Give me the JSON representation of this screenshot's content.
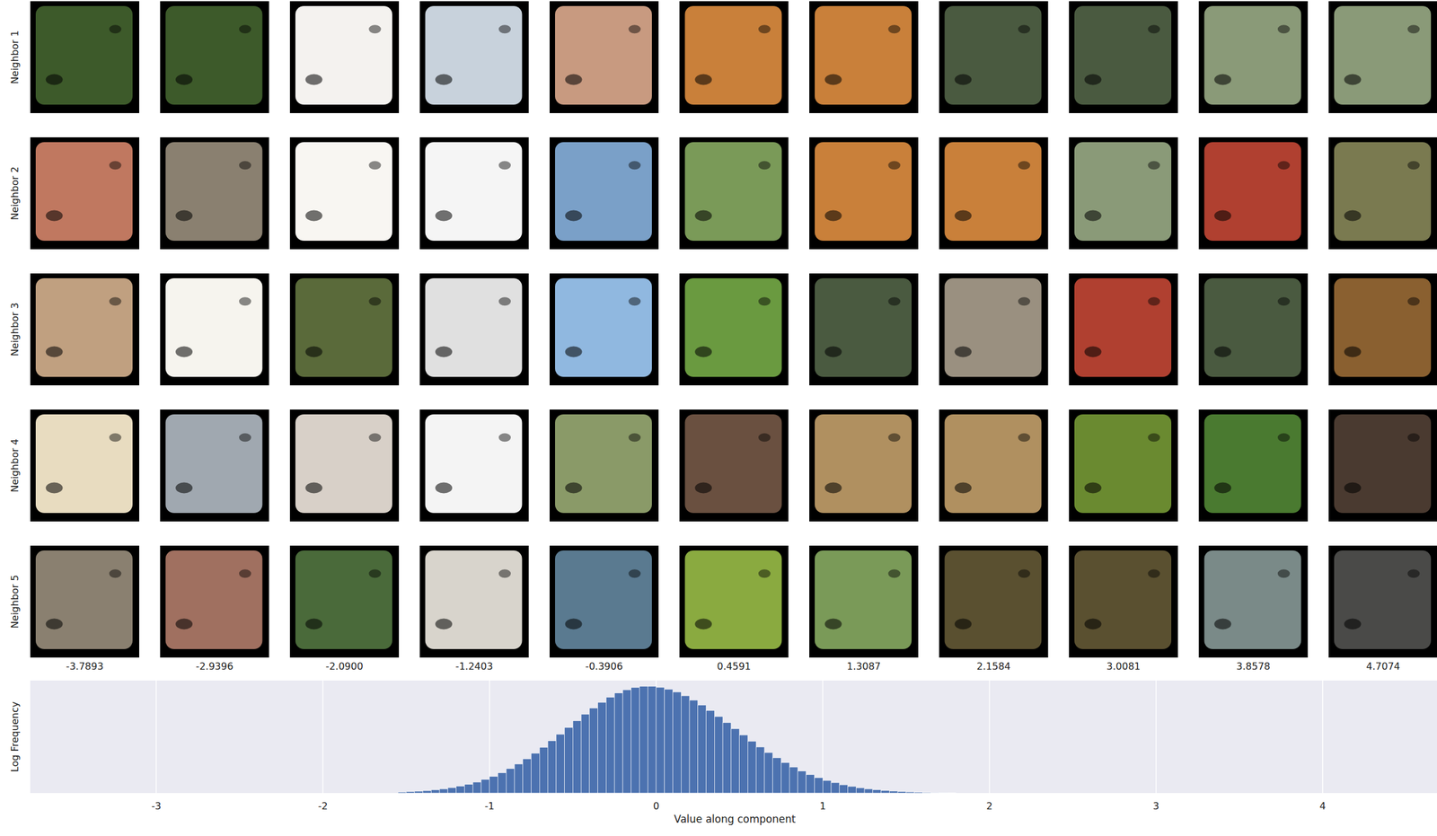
{
  "image_grid": {
    "row_labels": [
      "Neighbor 1",
      "Neighbor 2",
      "Neighbor 3",
      "Neighbor 4",
      "Neighbor 5"
    ],
    "column_labels": [
      "-3.7893",
      "-2.9396",
      "-2.0900",
      "-1.2403",
      "-0.3906",
      "0.4591",
      "1.3087",
      "2.1584",
      "3.0081",
      "3.8578",
      "4.7074"
    ]
  },
  "chart_data": {
    "type": "histogram",
    "x_label": "Value along component",
    "y_label": "Log Frequency",
    "bins": [
      -1.55,
      -1.5,
      -1.45,
      -1.4,
      -1.35,
      -1.3,
      -1.25,
      -1.2,
      -1.15,
      -1.1,
      -1.05,
      -1.0,
      -0.95,
      -0.9,
      -0.85,
      -0.8,
      -0.75,
      -0.7,
      -0.65,
      -0.6,
      -0.55,
      -0.5,
      -0.45,
      -0.4,
      -0.35,
      -0.3,
      -0.25,
      -0.2,
      -0.15,
      -0.1,
      -0.05,
      0.0,
      0.05,
      0.1,
      0.15,
      0.2,
      0.25,
      0.3,
      0.35,
      0.4,
      0.45,
      0.5,
      0.55,
      0.6,
      0.65,
      0.7,
      0.75,
      0.8,
      0.85,
      0.9,
      0.95,
      1.0,
      1.05,
      1.1,
      1.15,
      1.2,
      1.25,
      1.3,
      1.35,
      1.4,
      1.45,
      1.5,
      1.55,
      1.6,
      1.65,
      1.7,
      1.75,
      1.8
    ],
    "values": [
      0.009,
      0.012,
      0.016,
      0.021,
      0.028,
      0.037,
      0.048,
      0.061,
      0.077,
      0.097,
      0.121,
      0.148,
      0.18,
      0.217,
      0.258,
      0.304,
      0.354,
      0.407,
      0.464,
      0.522,
      0.582,
      0.642,
      0.7,
      0.755,
      0.806,
      0.851,
      0.889,
      0.918,
      0.939,
      0.949,
      0.949,
      0.94,
      0.923,
      0.898,
      0.865,
      0.826,
      0.782,
      0.733,
      0.68,
      0.626,
      0.571,
      0.516,
      0.461,
      0.409,
      0.36,
      0.313,
      0.27,
      0.231,
      0.195,
      0.164,
      0.136,
      0.112,
      0.092,
      0.074,
      0.059,
      0.047,
      0.037,
      0.029,
      0.022,
      0.017,
      0.013,
      0.01,
      0.007,
      0.005,
      0.004,
      0.003,
      0.002
    ],
    "color": "#4c72b0",
    "xlim": [
      -3.756,
      4.686
    ],
    "xticks": [
      -3,
      -2,
      -1,
      0,
      1,
      2,
      3,
      4
    ],
    "ylim": [
      0,
      1
    ],
    "grid": true,
    "tick_labels": "x"
  }
}
